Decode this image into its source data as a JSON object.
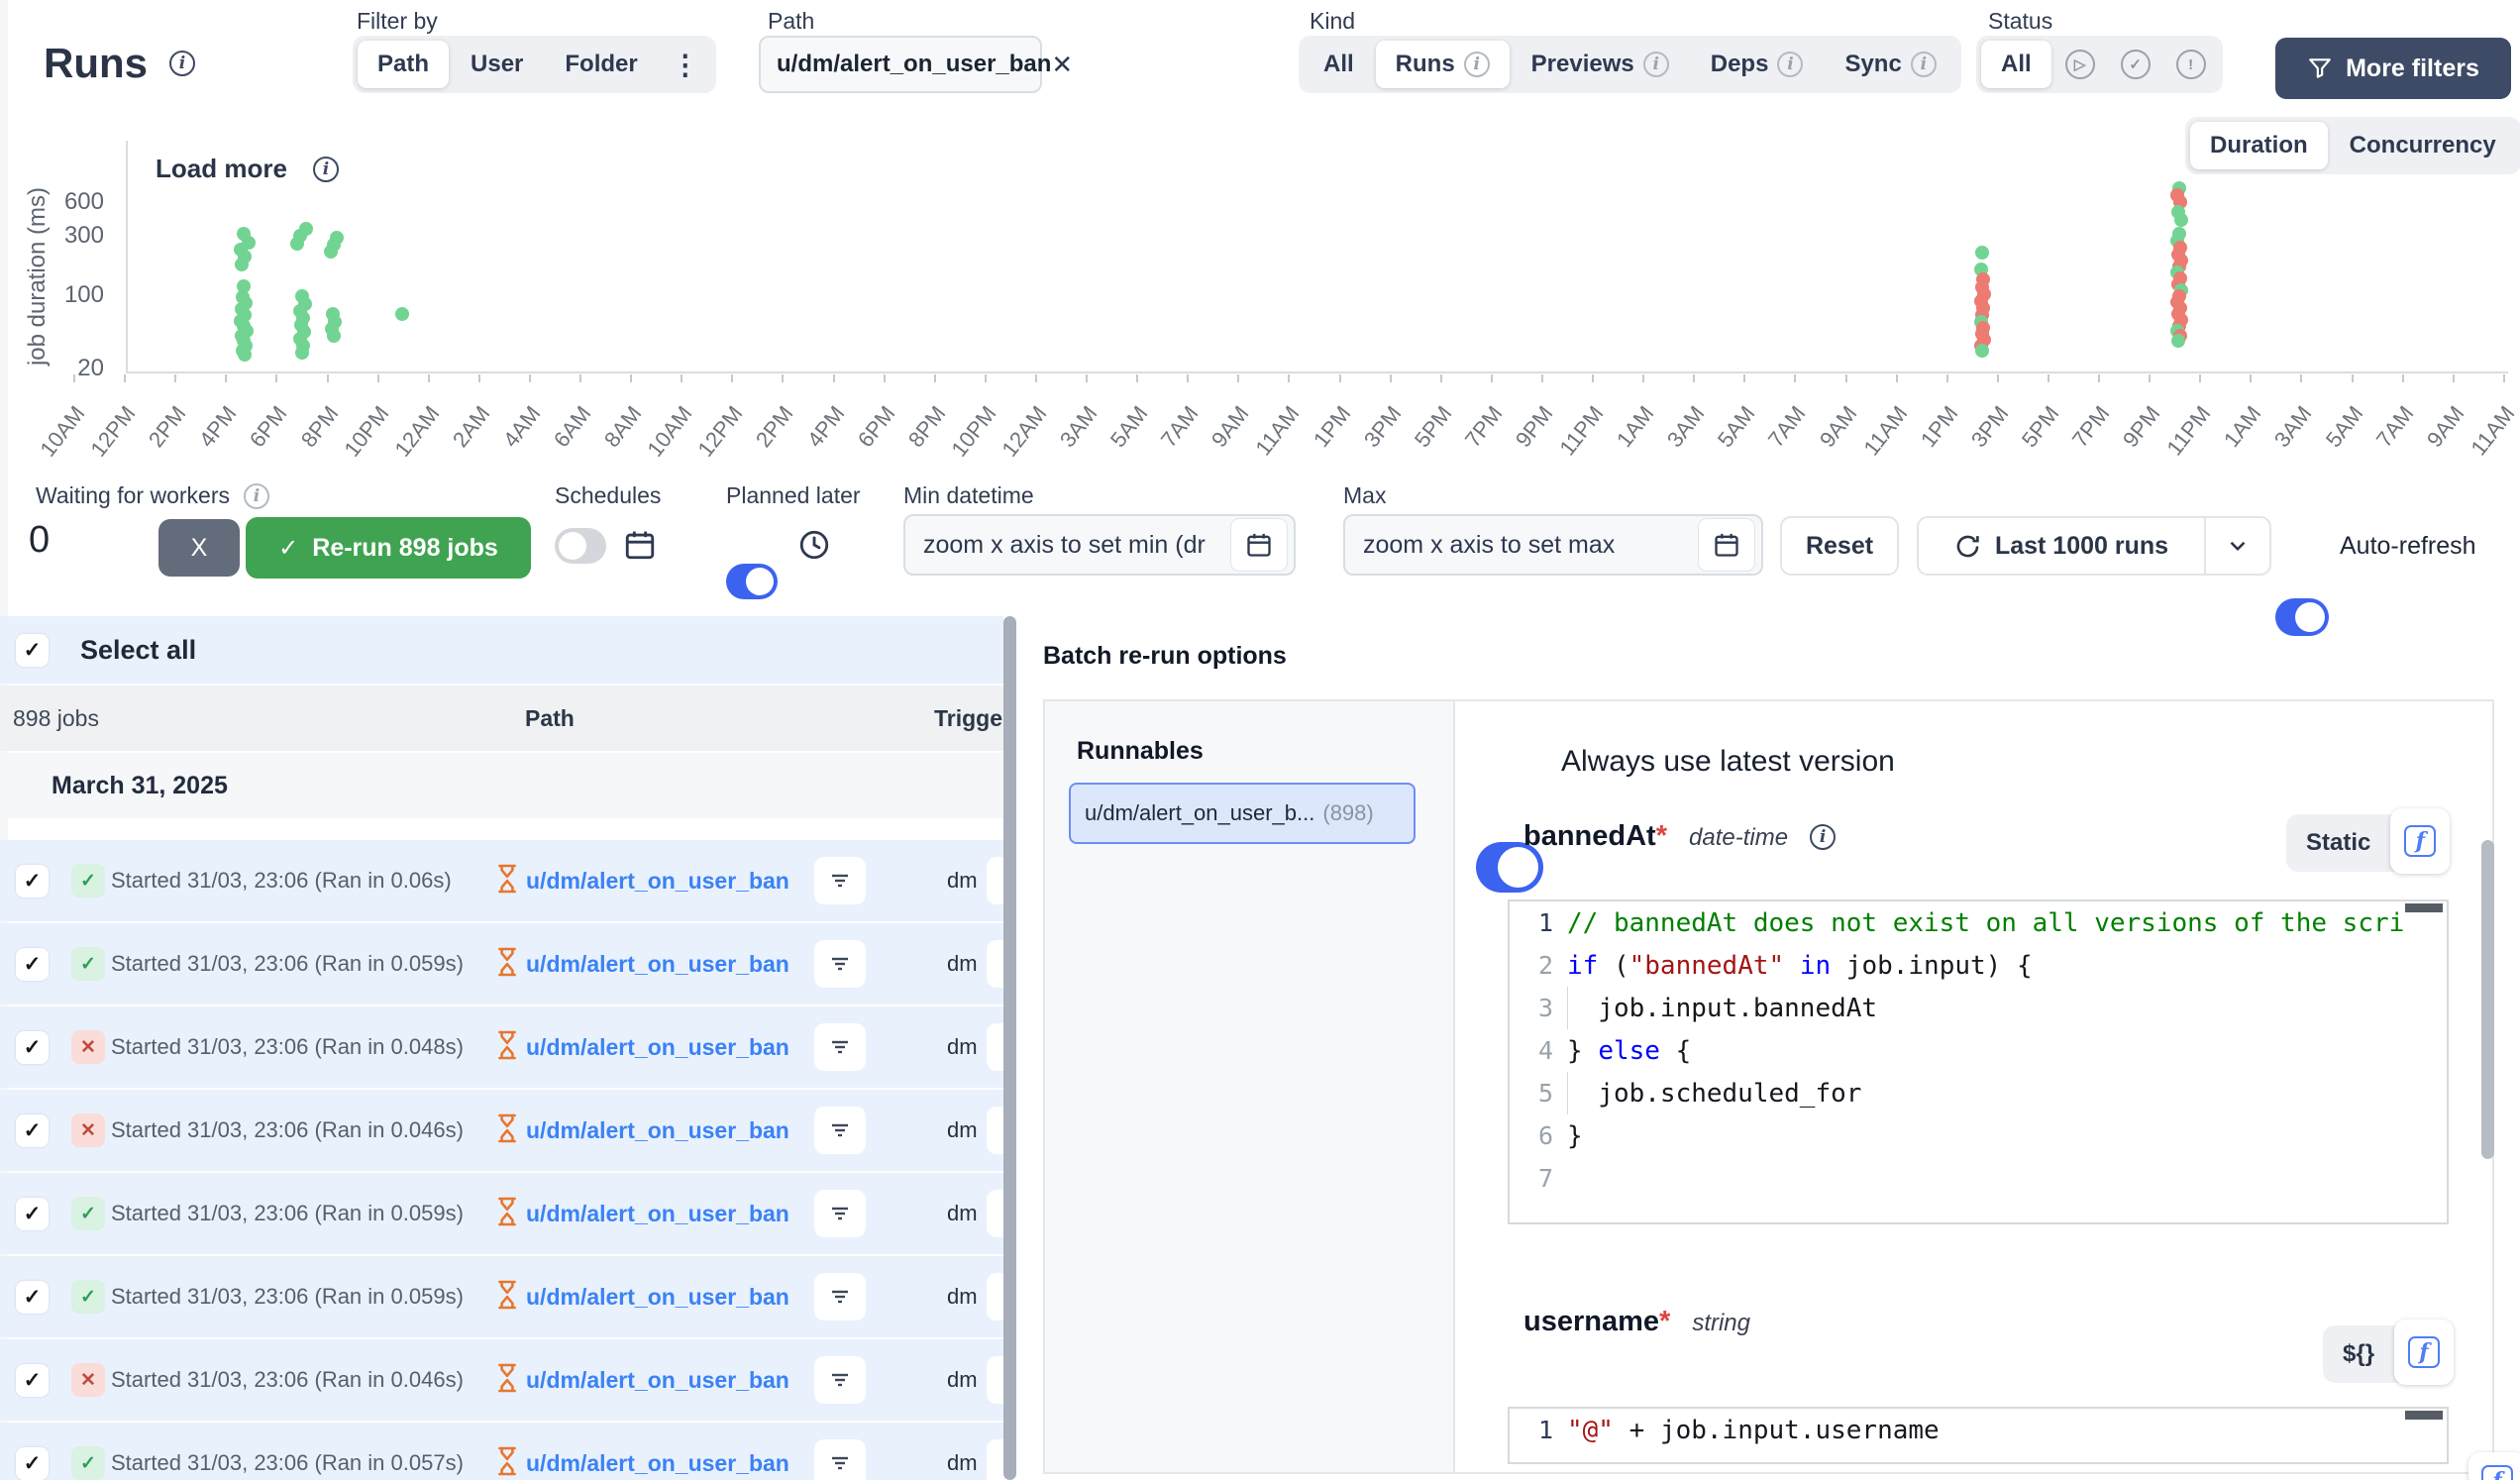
{
  "page": {
    "title": "Runs"
  },
  "colors": {
    "accent_blue": "#3b63f0",
    "link_blue": "#3b82f6",
    "success_green": "#72d492",
    "failure_red": "#ec7b72",
    "button_green": "#40a351",
    "navy": "#3d4b66",
    "selected_row_bg": "#e9f1fc"
  },
  "filters": {
    "filter_by": {
      "label": "Filter by",
      "options": [
        "Path",
        "User",
        "Folder"
      ],
      "selected": "Path"
    },
    "path": {
      "label": "Path",
      "value": "u/dm/alert_on_user_ban"
    },
    "kind": {
      "label": "Kind",
      "options": [
        "All",
        "Runs",
        "Previews",
        "Deps",
        "Sync"
      ],
      "selected": "Runs"
    },
    "status": {
      "label": "Status",
      "all": "All",
      "selected": "All"
    },
    "more_filters": "More filters"
  },
  "chart": {
    "load_more_label": "Load more",
    "view_options": [
      "Duration",
      "Concurrency"
    ],
    "view_selected": "Duration",
    "y_axis_label": "job duration (ms)",
    "y_ticks": [
      "600",
      "300",
      "100",
      "20"
    ],
    "x_labels": [
      "10AM",
      "12PM",
      "2PM",
      "4PM",
      "6PM",
      "8PM",
      "10PM",
      "12AM",
      "2AM",
      "4AM",
      "6AM",
      "8AM",
      "10AM",
      "12PM",
      "2PM",
      "4PM",
      "6PM",
      "8PM",
      "10PM",
      "12AM",
      "3AM",
      "5AM",
      "7AM",
      "9AM",
      "11AM",
      "1PM",
      "3PM",
      "5PM",
      "7PM",
      "9PM",
      "11PM",
      "1AM",
      "3AM",
      "5AM",
      "7AM",
      "9AM",
      "11AM",
      "1PM",
      "3PM",
      "5PM",
      "7PM",
      "9PM",
      "11PM",
      "1AM",
      "3AM",
      "5AM",
      "7AM",
      "9AM",
      "11AM"
    ],
    "dots": [
      [
        246,
        236,
        "s"
      ],
      [
        251,
        245,
        "s"
      ],
      [
        243,
        252,
        "s"
      ],
      [
        247,
        259,
        "s"
      ],
      [
        244,
        267,
        "s"
      ],
      [
        246,
        289,
        "s"
      ],
      [
        245,
        300,
        "s"
      ],
      [
        248,
        306,
        "s"
      ],
      [
        244,
        312,
        "s"
      ],
      [
        247,
        318,
        "s"
      ],
      [
        243,
        324,
        "s"
      ],
      [
        246,
        329,
        "s"
      ],
      [
        249,
        334,
        "s"
      ],
      [
        244,
        339,
        "s"
      ],
      [
        246,
        344,
        "s"
      ],
      [
        248,
        349,
        "s"
      ],
      [
        245,
        354,
        "s"
      ],
      [
        247,
        358,
        "s"
      ],
      [
        303,
        238,
        "s"
      ],
      [
        309,
        231,
        "s"
      ],
      [
        300,
        246,
        "s"
      ],
      [
        305,
        299,
        "s"
      ],
      [
        308,
        307,
        "s"
      ],
      [
        303,
        314,
        "s"
      ],
      [
        306,
        321,
        "s"
      ],
      [
        304,
        328,
        "s"
      ],
      [
        307,
        335,
        "s"
      ],
      [
        303,
        342,
        "s"
      ],
      [
        306,
        349,
        "s"
      ],
      [
        305,
        356,
        "s"
      ],
      [
        337,
        247,
        "s"
      ],
      [
        334,
        254,
        "s"
      ],
      [
        340,
        240,
        "s"
      ],
      [
        336,
        317,
        "s"
      ],
      [
        338,
        325,
        "s"
      ],
      [
        335,
        332,
        "s"
      ],
      [
        337,
        339,
        "s"
      ],
      [
        406,
        317,
        "s"
      ],
      [
        2001,
        255,
        "s"
      ],
      [
        2000,
        272,
        "s"
      ],
      [
        2002,
        282,
        "f"
      ],
      [
        2001,
        290,
        "f"
      ],
      [
        2003,
        297,
        "f"
      ],
      [
        2000,
        304,
        "f"
      ],
      [
        2002,
        311,
        "f"
      ],
      [
        2001,
        318,
        "f"
      ],
      [
        2000,
        325,
        "s"
      ],
      [
        2002,
        331,
        "f"
      ],
      [
        2001,
        337,
        "f"
      ],
      [
        2003,
        343,
        "f"
      ],
      [
        2000,
        349,
        "f"
      ],
      [
        2001,
        354,
        "s"
      ],
      [
        2200,
        190,
        "s"
      ],
      [
        2198,
        197,
        "f"
      ],
      [
        2201,
        204,
        "f"
      ],
      [
        2199,
        214,
        "s"
      ],
      [
        2202,
        222,
        "s"
      ],
      [
        2200,
        236,
        "s"
      ],
      [
        2198,
        243,
        "s"
      ],
      [
        2201,
        250,
        "f"
      ],
      [
        2199,
        257,
        "f"
      ],
      [
        2202,
        263,
        "f"
      ],
      [
        2200,
        269,
        "f"
      ],
      [
        2198,
        275,
        "s"
      ],
      [
        2201,
        281,
        "f"
      ],
      [
        2199,
        287,
        "f"
      ],
      [
        2202,
        293,
        "s"
      ],
      [
        2200,
        299,
        "f"
      ],
      [
        2198,
        305,
        "f"
      ],
      [
        2201,
        311,
        "f"
      ],
      [
        2199,
        317,
        "f"
      ],
      [
        2202,
        323,
        "f"
      ],
      [
        2200,
        329,
        "f"
      ],
      [
        2198,
        334,
        "s"
      ],
      [
        2201,
        339,
        "f"
      ],
      [
        2199,
        344,
        "s"
      ]
    ]
  },
  "controls": {
    "waiting": {
      "label": "Waiting for workers",
      "count": "0"
    },
    "cancel_label": "X",
    "rerun_label": "Re-run 898 jobs",
    "schedules_label": "Schedules",
    "planned_later_label": "Planned later",
    "min": {
      "label": "Min datetime",
      "placeholder": "zoom x axis to set min (dr"
    },
    "max": {
      "label": "Max",
      "placeholder": "zoom x axis to set max"
    },
    "reset_label": "Reset",
    "last_runs_label": "Last 1000 runs",
    "auto_refresh_label": "Auto-refresh"
  },
  "list": {
    "select_all": "Select all",
    "count": "898 jobs",
    "col_path": "Path",
    "col_trigger": "Trigge",
    "date_header": "March 31, 2025",
    "rows": [
      {
        "status": "success",
        "started": "Started 31/03, 23:06 (Ran in 0.06s)",
        "path": "u/dm/alert_on_user_ban",
        "triggered_by": "dm"
      },
      {
        "status": "success",
        "started": "Started 31/03, 23:06 (Ran in 0.059s)",
        "path": "u/dm/alert_on_user_ban",
        "triggered_by": "dm"
      },
      {
        "status": "failure",
        "started": "Started 31/03, 23:06 (Ran in 0.048s)",
        "path": "u/dm/alert_on_user_ban",
        "triggered_by": "dm"
      },
      {
        "status": "failure",
        "started": "Started 31/03, 23:06 (Ran in 0.046s)",
        "path": "u/dm/alert_on_user_ban",
        "triggered_by": "dm"
      },
      {
        "status": "success",
        "started": "Started 31/03, 23:06 (Ran in 0.059s)",
        "path": "u/dm/alert_on_user_ban",
        "triggered_by": "dm"
      },
      {
        "status": "success",
        "started": "Started 31/03, 23:06 (Ran in 0.059s)",
        "path": "u/dm/alert_on_user_ban",
        "triggered_by": "dm"
      },
      {
        "status": "failure",
        "started": "Started 31/03, 23:06 (Ran in 0.046s)",
        "path": "u/dm/alert_on_user_ban",
        "triggered_by": "dm"
      },
      {
        "status": "success",
        "started": "Started 31/03, 23:06 (Ran in 0.057s)",
        "path": "u/dm/alert_on_user_ban",
        "triggered_by": "dm"
      }
    ]
  },
  "batch": {
    "title": "Batch re-run options",
    "runnables": {
      "label": "Runnables",
      "item": "u/dm/alert_on_user_b...",
      "count": "(898)"
    },
    "latest_label": "Always use latest version",
    "fields": [
      {
        "name": "bannedAt",
        "required": "*",
        "type": "date-time",
        "mode_label": "Static",
        "lines": [
          {
            "n": "1",
            "seg": [
              [
                "// bannedAt does not exist on all versions of the scri",
                "cm"
              ]
            ]
          },
          {
            "n": "2",
            "seg": [
              [
                "if",
                "kw"
              ],
              [
                " (",
                "tx"
              ],
              [
                "\"bannedAt\"",
                "str"
              ],
              [
                " ",
                "tx"
              ],
              [
                "in",
                "kw"
              ],
              [
                " job.input) {",
                "tx"
              ]
            ]
          },
          {
            "n": "3",
            "seg": [
              [
                "  job.input.bannedAt",
                "tx"
              ]
            ],
            "guide": true
          },
          {
            "n": "4",
            "seg": [
              [
                "} ",
                "tx"
              ],
              [
                "else",
                "kw"
              ],
              [
                " {",
                "tx"
              ]
            ]
          },
          {
            "n": "5",
            "seg": [
              [
                "  job.scheduled_for",
                "tx"
              ]
            ],
            "guide": true
          },
          {
            "n": "6",
            "seg": [
              [
                "}",
                "tx"
              ]
            ]
          },
          {
            "n": "7",
            "seg": []
          }
        ]
      },
      {
        "name": "username",
        "required": "*",
        "type": "string",
        "mode_label": "${}",
        "lines": [
          {
            "n": "1",
            "seg": [
              [
                "\"@\"",
                "str"
              ],
              [
                " + job.input.username",
                "tx"
              ]
            ]
          }
        ]
      }
    ]
  }
}
